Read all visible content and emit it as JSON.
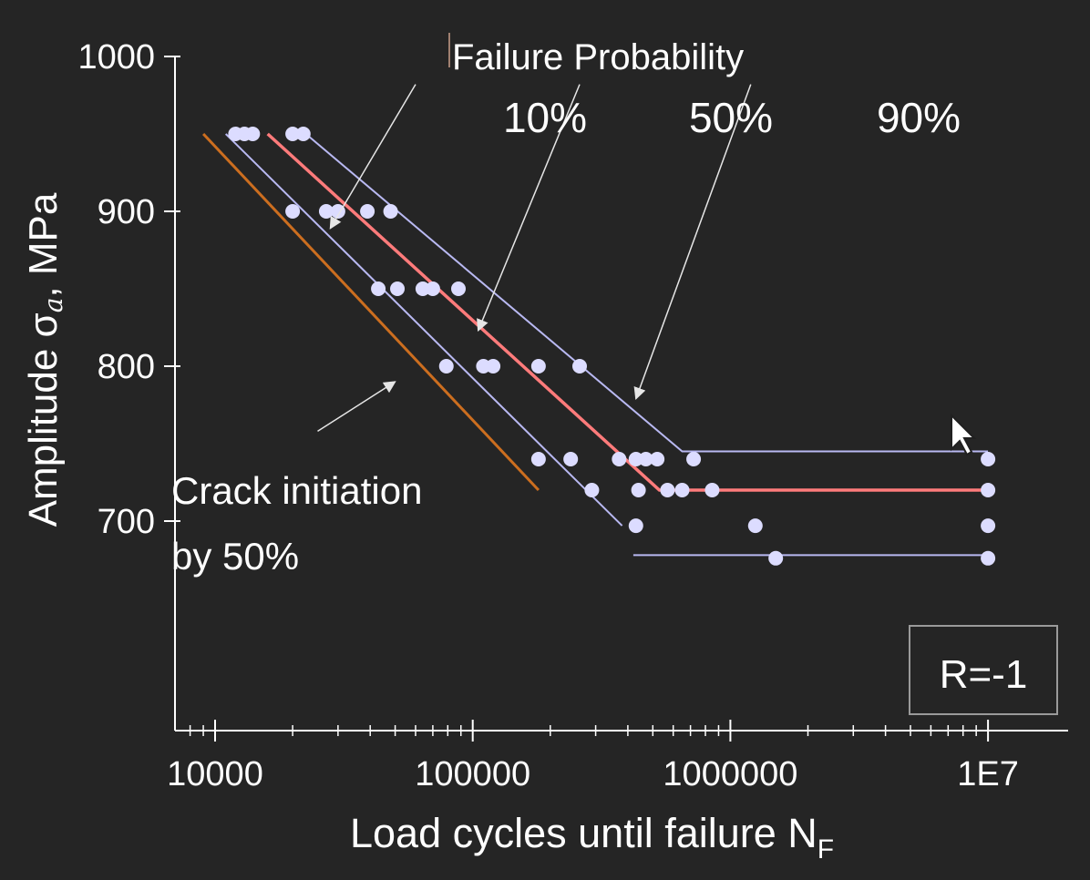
{
  "chart_data": {
    "type": "scatter",
    "x_scale": "log",
    "xlim": [
      8000,
      15000000
    ],
    "ylim": [
      620,
      1000
    ],
    "xlabel": "Load cycles until failure N",
    "xlabel_sub": "F",
    "ylabel": "Amplitude σ",
    "ylabel_sub": "a",
    "ylabel_unit": ", MPa",
    "x_ticks": [
      {
        "value": 10000,
        "label": "10000"
      },
      {
        "value": 100000,
        "label": "100000"
      },
      {
        "value": 1000000,
        "label": "1000000"
      },
      {
        "value": 10000000,
        "label": "1E7"
      }
    ],
    "y_ticks": [
      {
        "value": 1000,
        "label": "1000"
      },
      {
        "value": 900,
        "label": "900"
      },
      {
        "value": 800,
        "label": "800"
      },
      {
        "value": 700,
        "label": "700"
      }
    ],
    "points": [
      {
        "x": 12000,
        "y": 950
      },
      {
        "x": 13000,
        "y": 950
      },
      {
        "x": 14000,
        "y": 950
      },
      {
        "x": 20000,
        "y": 950
      },
      {
        "x": 22000,
        "y": 950
      },
      {
        "x": 20000,
        "y": 900
      },
      {
        "x": 27000,
        "y": 900
      },
      {
        "x": 30000,
        "y": 900
      },
      {
        "x": 39000,
        "y": 900
      },
      {
        "x": 48000,
        "y": 900
      },
      {
        "x": 43000,
        "y": 850
      },
      {
        "x": 51000,
        "y": 850
      },
      {
        "x": 64000,
        "y": 850
      },
      {
        "x": 70000,
        "y": 850
      },
      {
        "x": 88000,
        "y": 850
      },
      {
        "x": 79000,
        "y": 800
      },
      {
        "x": 110000,
        "y": 800
      },
      {
        "x": 120000,
        "y": 800
      },
      {
        "x": 180000,
        "y": 800
      },
      {
        "x": 260000,
        "y": 800
      },
      {
        "x": 180000,
        "y": 740
      },
      {
        "x": 240000,
        "y": 740
      },
      {
        "x": 370000,
        "y": 740
      },
      {
        "x": 430000,
        "y": 740
      },
      {
        "x": 470000,
        "y": 740
      },
      {
        "x": 520000,
        "y": 740
      },
      {
        "x": 720000,
        "y": 740
      },
      {
        "x": 10000000,
        "y": 740
      },
      {
        "x": 290000,
        "y": 720
      },
      {
        "x": 440000,
        "y": 720
      },
      {
        "x": 570000,
        "y": 720
      },
      {
        "x": 650000,
        "y": 720
      },
      {
        "x": 850000,
        "y": 720
      },
      {
        "x": 10000000,
        "y": 720
      },
      {
        "x": 430000,
        "y": 697
      },
      {
        "x": 1250000,
        "y": 697
      },
      {
        "x": 10000000,
        "y": 697
      },
      {
        "x": 1500000,
        "y": 676
      },
      {
        "x": 10000000,
        "y": 676
      }
    ],
    "lines": [
      {
        "name": "10%",
        "color": "#b9b9f2",
        "points": [
          [
            11000,
            950
          ],
          [
            380000,
            697
          ]
        ]
      },
      {
        "name": "10%",
        "color": "#b9b9f2",
        "points": [
          [
            420000,
            678
          ],
          [
            10000000,
            678
          ]
        ]
      },
      {
        "name": "50%",
        "color": "#ff7b7b",
        "points": [
          [
            16000,
            950
          ],
          [
            530000,
            720
          ],
          [
            10000000,
            720
          ]
        ]
      },
      {
        "name": "90%",
        "color": "#b9b9f2",
        "points": [
          [
            22500,
            950
          ],
          [
            650000,
            745
          ],
          [
            10000000,
            745
          ]
        ]
      },
      {
        "name": "Crack initiation by 50%",
        "color": "#cc6e1f",
        "points": [
          [
            9000,
            950
          ],
          [
            180000,
            720
          ]
        ]
      }
    ],
    "annotations": {
      "title": "Failure Probability",
      "labels": [
        {
          "text": "10%",
          "arrow_from": [
            60000,
            982
          ],
          "arrow_to": [
            28000,
            889
          ]
        },
        {
          "text": "50%",
          "arrow_from": [
            260000,
            982
          ],
          "arrow_to": [
            105000,
            823
          ]
        },
        {
          "text": "90%",
          "arrow_from": [
            1200000,
            982
          ],
          "arrow_to": [
            430000,
            779
          ]
        }
      ],
      "crack_label": [
        "Crack initiation",
        "by 50%"
      ],
      "crack_arrow_from": [
        25000,
        758
      ],
      "crack_arrow_to": [
        50000,
        790
      ],
      "r_box": "R=-1"
    },
    "colors": {
      "background": "#252525",
      "points": "#dcdcff",
      "prob_lines": "#b9b9f2",
      "median_line": "#ff7b7b",
      "crack_line": "#cc6e1f"
    }
  }
}
